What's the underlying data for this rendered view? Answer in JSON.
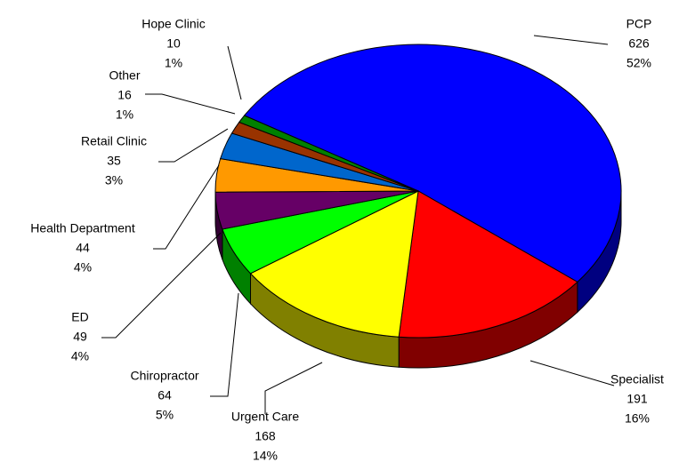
{
  "chart_data": {
    "type": "pie3d",
    "categories": [
      "PCP",
      "Specialist",
      "Urgent Care",
      "Chiropractor",
      "ED",
      "Health Department",
      "Retail Clinic",
      "Other",
      "Hope Clinic"
    ],
    "values": [
      626,
      191,
      168,
      64,
      49,
      44,
      35,
      16,
      10
    ],
    "percent_labels": [
      "52%",
      "16%",
      "14%",
      "5%",
      "4%",
      "4%",
      "3%",
      "1%",
      "1%"
    ],
    "colors": [
      "#0000ff",
      "#ff0000",
      "#ffff00",
      "#00ff00",
      "#660066",
      "#ff9900",
      "#0066cc",
      "#993300",
      "#008000"
    ]
  }
}
